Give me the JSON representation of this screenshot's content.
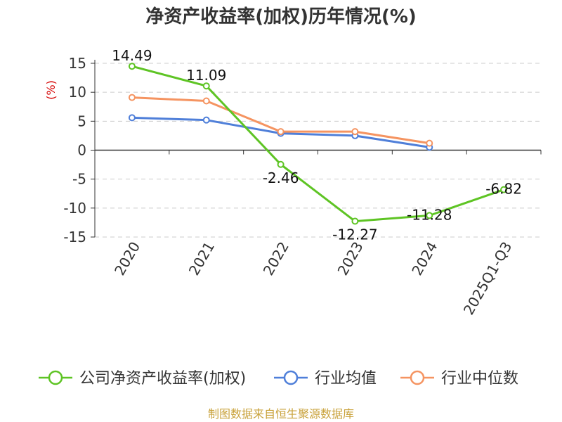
{
  "chart_data": {
    "type": "line",
    "title": "净资产收益率(加权)历年情况(%)",
    "ylabel": "(%)",
    "xlabel": "",
    "categories": [
      "2020",
      "2021",
      "2022",
      "2023",
      "2024",
      "2025Q1-Q3"
    ],
    "ylim": [
      -15,
      15
    ],
    "yticks": [
      15,
      10,
      5,
      0,
      -5,
      -10,
      -15
    ],
    "grid": true,
    "legend_position": "bottom",
    "series": [
      {
        "name": "公司净资产收益率(加权)",
        "color": "#5ec424",
        "values": [
          14.49,
          11.09,
          -2.46,
          -12.27,
          -11.28,
          -6.82
        ],
        "labels": [
          "14.49",
          "11.09",
          "-2.46",
          "-12.27",
          "-11.28",
          "-6.82"
        ]
      },
      {
        "name": "行业均值",
        "color": "#4f7fd9",
        "values": [
          5.6,
          5.2,
          2.9,
          2.5,
          0.5,
          null
        ]
      },
      {
        "name": "行业中位数",
        "color": "#f59461",
        "values": [
          9.1,
          8.5,
          3.2,
          3.2,
          1.2,
          null
        ]
      }
    ],
    "source": "制图数据来自恒生聚源数据库"
  }
}
